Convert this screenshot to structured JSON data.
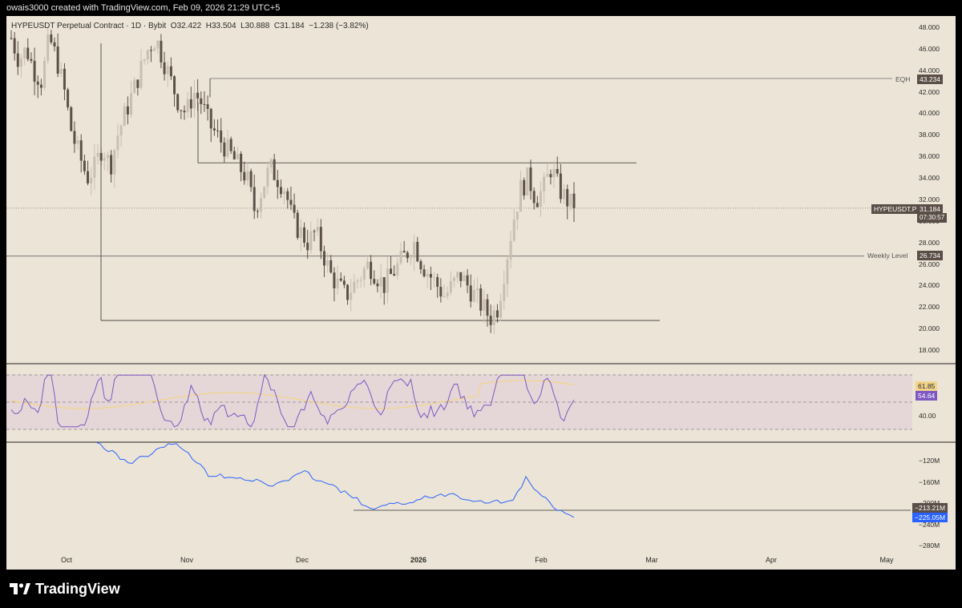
{
  "header": {
    "text": "owais3000 created with TradingView.com, Feb 09, 2026 21:29 UTC+5"
  },
  "legend": {
    "symbol": "HYPEUSDT Perpetual Contract · 1D · Bybit",
    "open_label": "O",
    "open": "32.422",
    "high_label": "H",
    "high": "33.504",
    "low_label": "L",
    "low": "30.888",
    "close_label": "C",
    "close": "31.184",
    "change": "−1.238 (−3.82%)"
  },
  "price_axis": [
    "48.000",
    "46.000",
    "44.000",
    "42.000",
    "40.000",
    "38.000",
    "36.000",
    "34.000",
    "32.000",
    "30.000",
    "28.000",
    "26.000",
    "24.000",
    "22.000",
    "20.000",
    "18.000"
  ],
  "rsi_axis": [
    "40.00"
  ],
  "cvd_axis": [
    "−120M",
    "−160M",
    "−200M",
    "−240M",
    "−280M"
  ],
  "time_axis": [
    {
      "label": "Oct",
      "bold": false
    },
    {
      "label": "Nov",
      "bold": false
    },
    {
      "label": "Dec",
      "bold": false
    },
    {
      "label": "2026",
      "bold": true
    },
    {
      "label": "Feb",
      "bold": false
    },
    {
      "label": "Mar",
      "bold": false
    },
    {
      "label": "Apr",
      "bold": false
    },
    {
      "label": "May",
      "bold": false
    }
  ],
  "levels": {
    "eqh_label": "EQH",
    "eqh_value": "43.234",
    "weekly_label": "Weekly Level",
    "weekly_value": "26.734",
    "symbol_tag": "HYPEUSDT.P",
    "price_tag": "31.184",
    "countdown": "07:30:57"
  },
  "rsi": {
    "value1": "61.85",
    "value2": "54.64"
  },
  "cvd": {
    "value1": "−213.21M",
    "value2": "−225.05M"
  },
  "colors": {
    "background": "#ece4d6",
    "bull": "#c8bfb2",
    "bear": "#5c5048",
    "rsi_line": "#7e57c2",
    "rsi_ma": "#f2d48a",
    "rsi_band": "#e2d2d8",
    "cvd_line": "#2962ff",
    "tag_dark": "#5a4e46"
  },
  "footer": {
    "brand": "TradingView",
    "logo_icon": "tradingview-logo-icon"
  },
  "chart_data": {
    "type": "candlestick",
    "title": "HYPEUSDT Perpetual Contract · 1D · Bybit",
    "ylim": [
      17,
      49
    ],
    "x_months": [
      "Oct",
      "Nov",
      "Dec",
      "2026",
      "Feb",
      "Mar",
      "Apr",
      "May"
    ],
    "levels": [
      {
        "name": "EQH",
        "value": 43.234
      },
      {
        "name": "Weekly Level",
        "value": 26.734
      },
      {
        "name": "range high",
        "value": 35.4
      },
      {
        "name": "range low",
        "value": 20.8
      }
    ],
    "last_price": 31.184,
    "ohlc_anchor_closes": [
      47,
      45,
      46,
      44,
      43,
      47,
      45,
      42,
      38,
      36,
      34,
      35,
      37,
      35,
      38,
      40,
      42,
      44,
      46,
      47,
      45,
      43,
      41,
      40,
      42,
      41,
      39,
      38,
      37,
      36,
      35,
      34,
      31,
      33,
      35,
      34,
      33,
      30,
      29,
      28,
      29,
      27,
      25,
      24,
      23,
      24,
      25,
      26,
      25,
      24,
      25,
      26,
      27,
      28,
      26,
      25,
      24,
      23,
      24,
      25,
      24,
      23,
      22,
      21,
      22,
      26,
      30,
      33,
      34,
      32,
      33,
      35,
      33,
      32,
      31.184
    ]
  }
}
